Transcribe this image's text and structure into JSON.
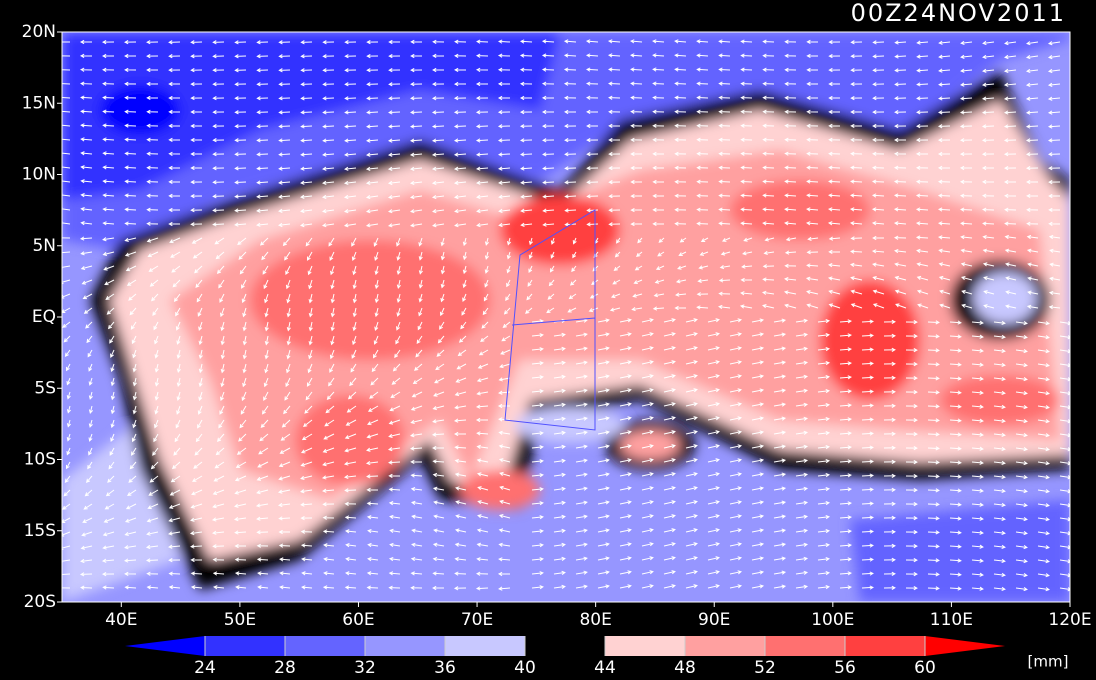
{
  "title": "00Z24NOV2011",
  "lat_labels": [
    "20N",
    "15N",
    "10N",
    "5N",
    "EQ",
    "5S",
    "10S",
    "15S",
    "20S"
  ],
  "lon_labels": [
    "40E",
    "50E",
    "60E",
    "70E",
    "80E",
    "90E",
    "100E",
    "110E",
    "120E"
  ],
  "colorbar": {
    "ticks": [
      24,
      28,
      32,
      36,
      40,
      44,
      48,
      52,
      56,
      60
    ],
    "colors": [
      "#0000ff",
      "#3232ff",
      "#6464ff",
      "#9696ff",
      "#c8c8ff",
      "#000000",
      "#ffd2d2",
      "#ffa0a0",
      "#ff7070",
      "#ff4040",
      "#ff0000"
    ],
    "unit": "[mm]"
  }
}
